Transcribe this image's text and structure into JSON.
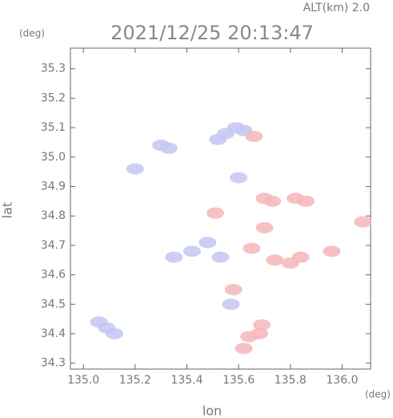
{
  "chart_data": {
    "type": "scatter",
    "title": "2021/12/25 20:13:47",
    "subtitle": "ALT(km) 2.0",
    "y_unit": "(deg)",
    "x_unit": "(deg)",
    "x_label": "lon",
    "y_label": "lat",
    "xlim": [
      134.95,
      136.11
    ],
    "ylim": [
      34.28,
      35.37
    ],
    "xticks": [
      {
        "value": 135,
        "label": "135.0"
      },
      135.2,
      135.4,
      135.6,
      135.8,
      {
        "value": 136,
        "label": "136.0"
      }
    ],
    "yticks": [
      34.3,
      34.4,
      34.5,
      34.6,
      34.7,
      34.8,
      34.9,
      {
        "value": 35,
        "label": "35.0"
      },
      35.1,
      35.2,
      35.3
    ],
    "series": [
      {
        "color": "#c4c6f2",
        "x": [
          135.06,
          135.09,
          135.12,
          135.3,
          135.33,
          135.2,
          135.52,
          135.55,
          135.59,
          135.62,
          135.35,
          135.42,
          135.48,
          135.53,
          135.6,
          135.57
        ],
        "values": [
          34.44,
          34.42,
          34.4,
          35.04,
          35.03,
          34.96,
          35.06,
          35.08,
          35.1,
          35.09,
          34.66,
          34.68,
          34.71,
          34.66,
          34.93,
          34.5
        ]
      },
      {
        "color": "#f6b6b8",
        "x": [
          135.66,
          135.7,
          135.73,
          135.82,
          135.86,
          135.96,
          136.08,
          135.74,
          135.8,
          135.84,
          135.65,
          135.69,
          135.68,
          135.64,
          135.62,
          135.51,
          135.58,
          135.7
        ],
        "values": [
          35.07,
          34.86,
          34.85,
          34.86,
          34.85,
          34.68,
          34.78,
          34.65,
          34.64,
          34.66,
          34.69,
          34.43,
          34.4,
          34.39,
          34.35,
          34.81,
          34.55,
          34.76
        ]
      }
    ]
  }
}
